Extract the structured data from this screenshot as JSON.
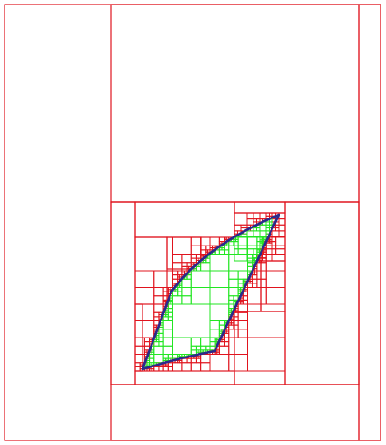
{
  "diagram": {
    "type": "adaptive-quadtree-subdivision",
    "colors": {
      "background": "#ffffff",
      "outer_cells": "#e0141e",
      "boundary_cells": "#e0141e",
      "inside_cells": "#22e622",
      "shape_outline": "#2a2a8c"
    },
    "shape": {
      "kind": "curved-parallelogram",
      "vertices": [
        "bottom-left",
        "left-shoulder",
        "top-right",
        "right-lower"
      ]
    }
  }
}
